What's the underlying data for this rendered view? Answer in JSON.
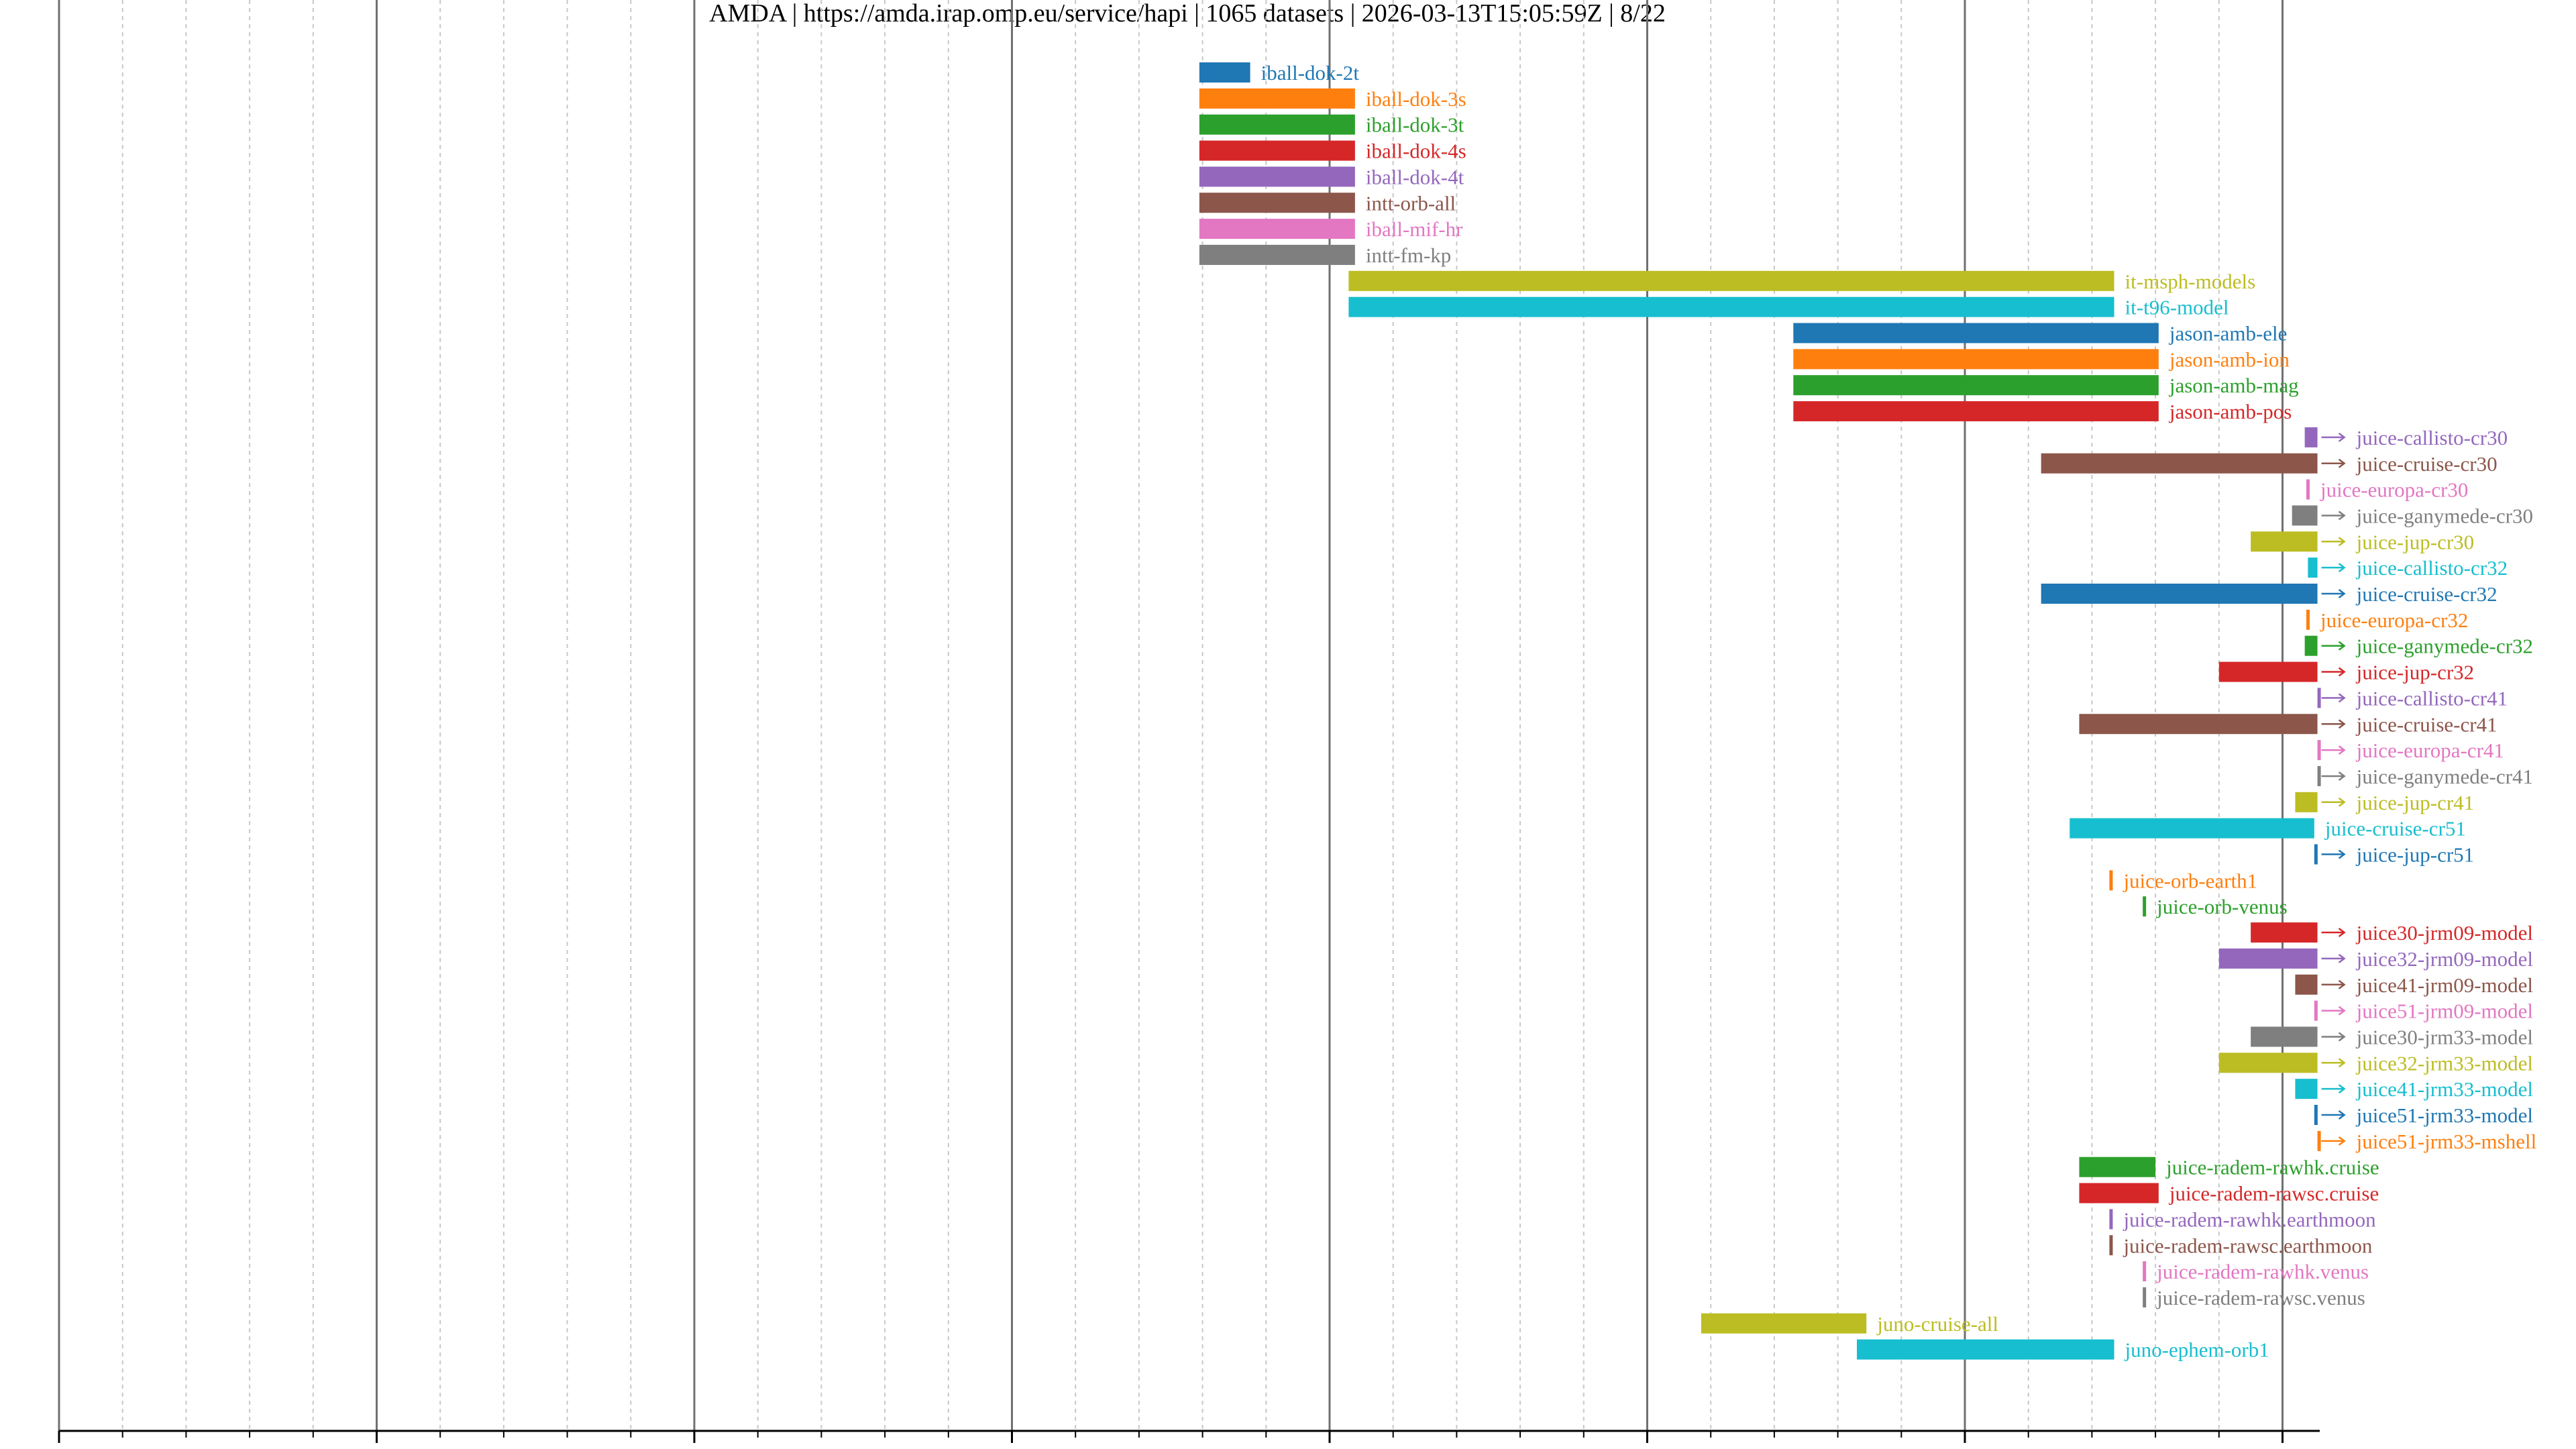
{
  "chart_data": {
    "type": "bar",
    "orientation": "horizontal-timeline",
    "title": "AMDA | https://amda.irap.omp.eu/service/hapi | 1065 datasets | 2026-03-13T15:05:59Z | 8/22",
    "xlabel": "",
    "ylabel": "",
    "xlim": [
      1960,
      2033
    ],
    "xticks": [
      "1960",
      "1970",
      "1980",
      "1990",
      "2000",
      "2010",
      "2020",
      "2030"
    ],
    "major_grid_every_years": 10,
    "minor_grid_every_years": 2,
    "legend": "none",
    "series": [
      {
        "name": "iball-dok-2t",
        "start": 1995.9,
        "end": 1997.5,
        "color": "#1f77b4"
      },
      {
        "name": "iball-dok-3s",
        "start": 1995.9,
        "end": 2000.8,
        "color": "#ff7f0e"
      },
      {
        "name": "iball-dok-3t",
        "start": 1995.9,
        "end": 2000.8,
        "color": "#2ca02c"
      },
      {
        "name": "iball-dok-4s",
        "start": 1995.9,
        "end": 2000.8,
        "color": "#d62728"
      },
      {
        "name": "iball-dok-4t",
        "start": 1995.9,
        "end": 2000.8,
        "color": "#9467bd"
      },
      {
        "name": "intt-orb-all",
        "start": 1995.9,
        "end": 2000.8,
        "color": "#8c564b"
      },
      {
        "name": "iball-mif-hr",
        "start": 1995.9,
        "end": 2000.8,
        "color": "#e377c2"
      },
      {
        "name": "intt-fm-kp",
        "start": 1995.9,
        "end": 2000.8,
        "color": "#7f7f7f"
      },
      {
        "name": "it-msph-models",
        "start": 2000.6,
        "end": 2024.7,
        "color": "#bcbd22"
      },
      {
        "name": "it-t96-model",
        "start": 2000.6,
        "end": 2024.7,
        "color": "#17becf"
      },
      {
        "name": "jason-amb-ele",
        "start": 2014.6,
        "end": 2026.1,
        "color": "#1f77b4"
      },
      {
        "name": "jason-amb-ion",
        "start": 2014.6,
        "end": 2026.1,
        "color": "#ff7f0e"
      },
      {
        "name": "jason-amb-mag",
        "start": 2014.6,
        "end": 2026.1,
        "color": "#2ca02c"
      },
      {
        "name": "jason-amb-pos",
        "start": 2014.6,
        "end": 2026.1,
        "color": "#d62728"
      },
      {
        "name": "juice-callisto-cr30",
        "start": 2030.7,
        "end": 2031.1,
        "color": "#9467bd",
        "ongoing": true
      },
      {
        "name": "juice-cruise-cr30",
        "start": 2022.4,
        "end": 2031.1,
        "color": "#8c564b",
        "ongoing": true
      },
      {
        "name": "juice-europa-cr30",
        "start": 2030.75,
        "end": 2030.8,
        "color": "#e377c2"
      },
      {
        "name": "juice-ganymede-cr30",
        "start": 2030.3,
        "end": 2031.1,
        "color": "#7f7f7f",
        "ongoing": true
      },
      {
        "name": "juice-jup-cr30",
        "start": 2029.0,
        "end": 2031.1,
        "color": "#bcbd22",
        "ongoing": true
      },
      {
        "name": "juice-callisto-cr32",
        "start": 2030.8,
        "end": 2031.1,
        "color": "#17becf",
        "ongoing": true
      },
      {
        "name": "juice-cruise-cr32",
        "start": 2022.4,
        "end": 2031.1,
        "color": "#1f77b4",
        "ongoing": true
      },
      {
        "name": "juice-europa-cr32",
        "start": 2030.75,
        "end": 2030.8,
        "color": "#ff7f0e"
      },
      {
        "name": "juice-ganymede-cr32",
        "start": 2030.7,
        "end": 2031.1,
        "color": "#2ca02c",
        "ongoing": true
      },
      {
        "name": "juice-jup-cr32",
        "start": 2028.0,
        "end": 2031.1,
        "color": "#d62728",
        "ongoing": true
      },
      {
        "name": "juice-callisto-cr41",
        "start": 2031.1,
        "end": 2031.1,
        "color": "#9467bd",
        "ongoing": true
      },
      {
        "name": "juice-cruise-cr41",
        "start": 2023.6,
        "end": 2031.1,
        "color": "#8c564b",
        "ongoing": true
      },
      {
        "name": "juice-europa-cr41",
        "start": 2031.1,
        "end": 2031.1,
        "color": "#e377c2",
        "ongoing": true
      },
      {
        "name": "juice-ganymede-cr41",
        "start": 2031.1,
        "end": 2031.1,
        "color": "#7f7f7f",
        "ongoing": true
      },
      {
        "name": "juice-jup-cr41",
        "start": 2030.4,
        "end": 2031.1,
        "color": "#bcbd22",
        "ongoing": true
      },
      {
        "name": "juice-cruise-cr51",
        "start": 2023.3,
        "end": 2031.0,
        "color": "#17becf"
      },
      {
        "name": "juice-jup-cr51",
        "start": 2031.0,
        "end": 2031.1,
        "color": "#1f77b4",
        "ongoing": true
      },
      {
        "name": "juice-orb-earth1",
        "start": 2024.55,
        "end": 2024.6,
        "color": "#ff7f0e"
      },
      {
        "name": "juice-orb-venus",
        "start": 2025.6,
        "end": 2025.65,
        "color": "#2ca02c"
      },
      {
        "name": "juice30-jrm09-model",
        "start": 2029.0,
        "end": 2031.1,
        "color": "#d62728",
        "ongoing": true
      },
      {
        "name": "juice32-jrm09-model",
        "start": 2028.0,
        "end": 2031.1,
        "color": "#9467bd",
        "ongoing": true
      },
      {
        "name": "juice41-jrm09-model",
        "start": 2030.4,
        "end": 2031.1,
        "color": "#8c564b",
        "ongoing": true
      },
      {
        "name": "juice51-jrm09-model",
        "start": 2031.0,
        "end": 2031.1,
        "color": "#e377c2",
        "ongoing": true
      },
      {
        "name": "juice30-jrm33-model",
        "start": 2029.0,
        "end": 2031.1,
        "color": "#7f7f7f",
        "ongoing": true
      },
      {
        "name": "juice32-jrm33-model",
        "start": 2028.0,
        "end": 2031.1,
        "color": "#bcbd22",
        "ongoing": true
      },
      {
        "name": "juice41-jrm33-model",
        "start": 2030.4,
        "end": 2031.1,
        "color": "#17becf",
        "ongoing": true
      },
      {
        "name": "juice51-jrm33-model",
        "start": 2031.0,
        "end": 2031.1,
        "color": "#1f77b4",
        "ongoing": true
      },
      {
        "name": "juice51-jrm33-mshell",
        "start": 2031.1,
        "end": 2031.1,
        "color": "#ff7f0e",
        "ongoing": true
      },
      {
        "name": "juice-radem-rawhk.cruise",
        "start": 2023.6,
        "end": 2026.0,
        "color": "#2ca02c"
      },
      {
        "name": "juice-radem-rawsc.cruise",
        "start": 2023.6,
        "end": 2026.1,
        "color": "#d62728"
      },
      {
        "name": "juice-radem-rawhk.earthmoon",
        "start": 2024.55,
        "end": 2024.65,
        "color": "#9467bd"
      },
      {
        "name": "juice-radem-rawsc.earthmoon",
        "start": 2024.55,
        "end": 2024.65,
        "color": "#8c564b"
      },
      {
        "name": "juice-radem-rawhk.venus",
        "start": 2025.6,
        "end": 2025.65,
        "color": "#e377c2"
      },
      {
        "name": "juice-radem-rawsc.venus",
        "start": 2025.6,
        "end": 2025.65,
        "color": "#7f7f7f"
      },
      {
        "name": "juno-cruise-all",
        "start": 2011.7,
        "end": 2016.9,
        "color": "#bcbd22"
      },
      {
        "name": "juno-ephem-orb1",
        "start": 2016.6,
        "end": 2024.7,
        "color": "#17becf"
      }
    ]
  }
}
